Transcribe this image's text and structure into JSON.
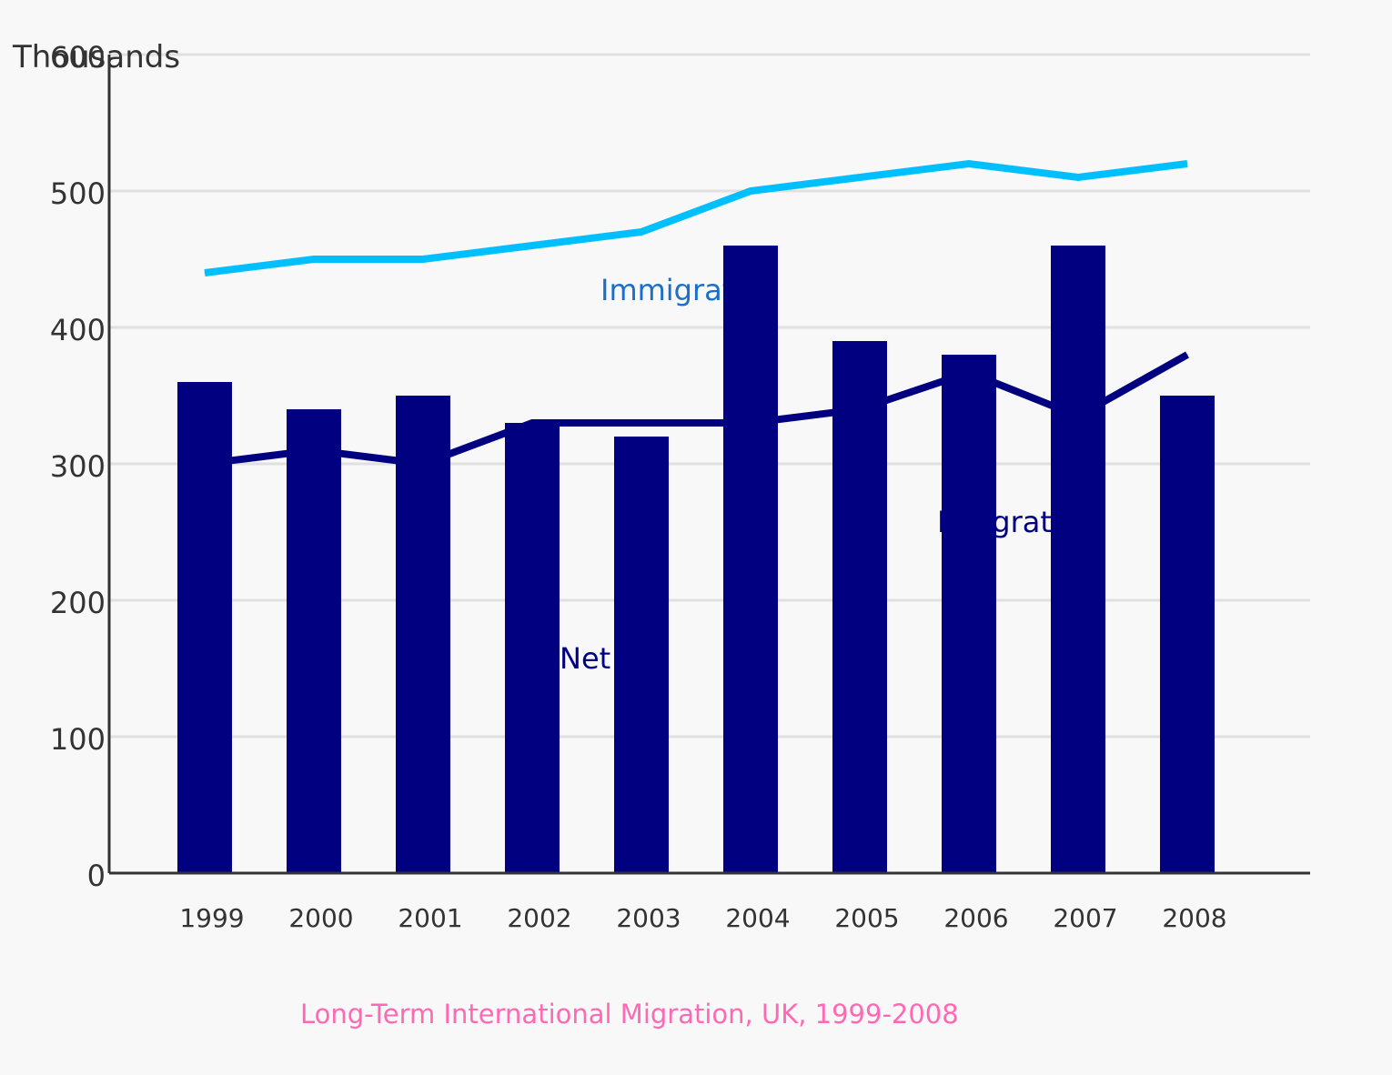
{
  "chart_data": {
    "type": "bar",
    "title": "Long-Term International Migration, UK, 1999-2008",
    "ylabel": "Thousands",
    "xlabel": "",
    "categories": [
      "1999",
      "2000",
      "2001",
      "2002",
      "2003",
      "2004",
      "2005",
      "2006",
      "2007",
      "2008"
    ],
    "ylim": [
      0,
      600
    ],
    "yticks": [
      0,
      100,
      200,
      300,
      400,
      500,
      600
    ],
    "grid": true,
    "series": [
      {
        "type": "bar",
        "values": [
          360,
          340,
          350,
          330,
          320,
          460,
          390,
          380,
          460,
          350
        ],
        "color": "#000080"
      },
      {
        "name": "Immigration",
        "type": "line",
        "values": [
          440,
          450,
          450,
          460,
          470,
          500,
          510,
          520,
          510,
          520
        ],
        "color": "#00bfff",
        "label_color": "#1a6fc8"
      },
      {
        "name": "Emigration",
        "type": "line",
        "values": [
          300,
          310,
          300,
          330,
          330,
          330,
          340,
          367,
          335,
          380
        ],
        "color": "#000080",
        "label_color": "#000080"
      }
    ],
    "annotations": [
      {
        "text": "Net",
        "color": "#000080"
      }
    ],
    "colors": {
      "axis": "#333333",
      "grid": "#e0e0e0",
      "caption": "#ff69b4"
    }
  }
}
